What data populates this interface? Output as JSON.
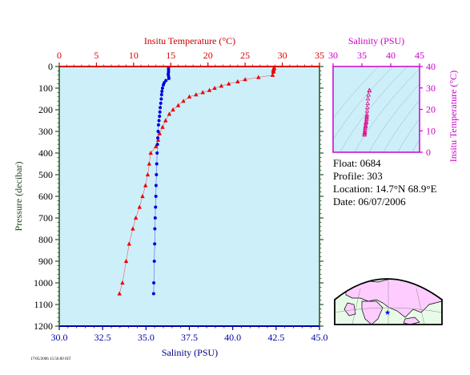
{
  "chart_data": [
    {
      "type": "scatter",
      "title": "",
      "x_top_label": "Insitu Temperature (°C)",
      "x_bottom_label": "Salinity (PSU)",
      "ylabel": "Pressure (decibar)",
      "temperature_axis": {
        "range": [
          0,
          35
        ],
        "ticks": [
          0,
          5,
          10,
          15,
          20,
          25,
          30,
          35
        ],
        "color": "#dd0000"
      },
      "salinity_axis": {
        "range": [
          30.0,
          45.0
        ],
        "ticks": [
          "30.0",
          "32.5",
          "35.0",
          "37.5",
          "40.0",
          "42.5",
          "45.0"
        ],
        "color": "#0000aa"
      },
      "pressure_axis": {
        "range": [
          0,
          1200
        ],
        "inverted": true,
        "ticks": [
          0,
          100,
          200,
          300,
          400,
          500,
          600,
          700,
          800,
          900,
          1000,
          1100,
          1200
        ]
      },
      "background": "#cdeffa",
      "series": [
        {
          "axis": "temperature",
          "color": "#ee0000",
          "marker": "triangle",
          "points": [
            [
              28.9,
              5
            ],
            [
              28.9,
              10
            ],
            [
              28.8,
              15
            ],
            [
              28.8,
              20
            ],
            [
              28.8,
              25
            ],
            [
              28.7,
              40
            ],
            [
              26.8,
              50
            ],
            [
              25.0,
              60
            ],
            [
              24.0,
              70
            ],
            [
              22.8,
              80
            ],
            [
              21.8,
              90
            ],
            [
              20.9,
              100
            ],
            [
              20.2,
              110
            ],
            [
              19.3,
              120
            ],
            [
              18.4,
              130
            ],
            [
              17.5,
              140
            ],
            [
              16.7,
              160
            ],
            [
              16.0,
              180
            ],
            [
              15.3,
              200
            ],
            [
              14.8,
              220
            ],
            [
              14.3,
              250
            ],
            [
              13.9,
              280
            ],
            [
              13.5,
              310
            ],
            [
              13.3,
              340
            ],
            [
              13.0,
              370
            ],
            [
              12.3,
              400
            ],
            [
              12.1,
              450
            ],
            [
              11.9,
              500
            ],
            [
              11.6,
              550
            ],
            [
              11.2,
              600
            ],
            [
              10.8,
              650
            ],
            [
              10.3,
              700
            ],
            [
              9.9,
              750
            ],
            [
              9.4,
              820
            ],
            [
              9.0,
              900
            ],
            [
              8.5,
              1000
            ],
            [
              8.1,
              1050
            ]
          ]
        },
        {
          "axis": "salinity",
          "color": "#0000dd",
          "marker": "circle",
          "points": [
            [
              36.3,
              5
            ],
            [
              36.3,
              15
            ],
            [
              36.3,
              25
            ],
            [
              36.28,
              35
            ],
            [
              36.3,
              45
            ],
            [
              36.32,
              55
            ],
            [
              36.15,
              65
            ],
            [
              36.05,
              75
            ],
            [
              36.0,
              85
            ],
            [
              35.95,
              100
            ],
            [
              35.92,
              115
            ],
            [
              35.9,
              130
            ],
            [
              35.88,
              150
            ],
            [
              35.85,
              170
            ],
            [
              35.82,
              190
            ],
            [
              35.8,
              210
            ],
            [
              35.78,
              230
            ],
            [
              35.75,
              250
            ],
            [
              35.72,
              270
            ],
            [
              35.7,
              300
            ],
            [
              35.68,
              330
            ],
            [
              35.66,
              360
            ],
            [
              35.64,
              400
            ],
            [
              35.62,
              450
            ],
            [
              35.6,
              500
            ],
            [
              35.58,
              550
            ],
            [
              35.57,
              600
            ],
            [
              35.55,
              650
            ],
            [
              35.53,
              700
            ],
            [
              35.51,
              750
            ],
            [
              35.5,
              820
            ],
            [
              35.48,
              900
            ],
            [
              35.45,
              1000
            ],
            [
              35.44,
              1050
            ]
          ]
        }
      ]
    },
    {
      "type": "scatter",
      "title": "",
      "xlabel": "Salinity (PSU)",
      "ylabel": "Insitu Temperature (°C)",
      "xlim": [
        30,
        45
      ],
      "ylim": [
        0,
        40
      ],
      "xticks": [
        30,
        35,
        40,
        45
      ],
      "yticks": [
        0,
        10,
        20,
        30,
        40
      ],
      "label_color": "#cc00cc",
      "background": "#cdeffa",
      "series": [
        {
          "color": "#dd1188",
          "marker": "triangle-open",
          "points": [
            [
              36.3,
              28.9
            ],
            [
              36.3,
              28.8
            ],
            [
              36.32,
              28.7
            ],
            [
              36.15,
              26.8
            ],
            [
              36.05,
              25.0
            ],
            [
              36.0,
              22.8
            ],
            [
              35.95,
              20.9
            ],
            [
              35.9,
              19.3
            ],
            [
              35.88,
              17.5
            ],
            [
              35.85,
              16.7
            ],
            [
              35.82,
              16.0
            ],
            [
              35.8,
              15.3
            ],
            [
              35.75,
              14.3
            ],
            [
              35.7,
              13.9
            ],
            [
              35.66,
              13.3
            ],
            [
              35.64,
              12.3
            ],
            [
              35.6,
              11.9
            ],
            [
              35.57,
              11.2
            ],
            [
              35.53,
              10.3
            ],
            [
              35.5,
              9.4
            ],
            [
              35.48,
              9.0
            ],
            [
              35.45,
              8.5
            ],
            [
              35.44,
              8.1
            ]
          ]
        }
      ]
    }
  ],
  "float_info": {
    "float": "Float:  0684",
    "profile": "Profile:  303",
    "location": "Location:  14.7°N  68.9°E",
    "date": "Date:  06/07/2006"
  },
  "map": {
    "icon": "world-map-icon",
    "float_marker_color": "#0000ff",
    "land_color": "#ffccff",
    "ocean_color": "#e8fbe8"
  },
  "footer_code": "17/05/2006 15:56:00 IST"
}
